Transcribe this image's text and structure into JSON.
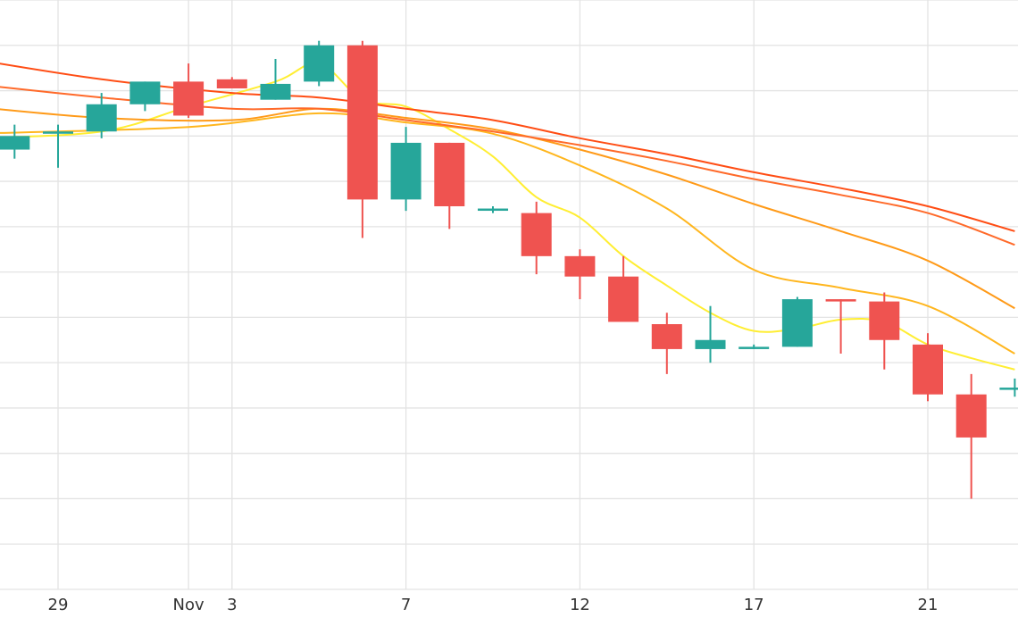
{
  "chart_data": {
    "type": "candlestick",
    "title": "",
    "xlabel": "",
    "ylabel": "",
    "grid": true,
    "legend": false,
    "x_ticks": [
      {
        "label": "29",
        "day": 29
      },
      {
        "label": "Nov",
        "day": 32
      },
      {
        "label": "3",
        "day": 33
      },
      {
        "label": "7",
        "day": 37
      },
      {
        "label": "12",
        "day": 41
      },
      {
        "label": "17",
        "day": 45
      },
      {
        "label": "21",
        "day": 49
      }
    ],
    "y_range": [
      0,
      13
    ],
    "candles": [
      {
        "day": 28,
        "open": 9.7,
        "high": 10.25,
        "low": 9.5,
        "close": 10.0
      },
      {
        "day": 29,
        "open": 10.05,
        "high": 10.25,
        "low": 9.3,
        "close": 10.1
      },
      {
        "day": 30,
        "open": 10.1,
        "high": 10.95,
        "low": 9.95,
        "close": 10.7
      },
      {
        "day": 31,
        "open": 10.7,
        "high": 11.2,
        "low": 10.55,
        "close": 11.2
      },
      {
        "day": 32,
        "open": 11.2,
        "high": 11.6,
        "low": 10.4,
        "close": 10.45
      },
      {
        "day": 33,
        "open": 11.25,
        "high": 11.3,
        "low": 11.05,
        "close": 11.05
      },
      {
        "day": 34,
        "open": 10.8,
        "high": 11.7,
        "low": 10.8,
        "close": 11.15
      },
      {
        "day": 35,
        "open": 11.2,
        "high": 12.1,
        "low": 11.1,
        "close": 12.0
      },
      {
        "day": 36,
        "open": 12.0,
        "high": 12.1,
        "low": 7.75,
        "close": 8.6
      },
      {
        "day": 37,
        "open": 8.6,
        "high": 10.2,
        "low": 8.35,
        "close": 9.85
      },
      {
        "day": 38,
        "open": 9.85,
        "high": 9.85,
        "low": 7.95,
        "close": 8.45
      },
      {
        "day": 39,
        "open": 8.4,
        "high": 8.45,
        "low": 8.3,
        "close": 8.4
      },
      {
        "day": 40,
        "open": 8.3,
        "high": 8.55,
        "low": 6.95,
        "close": 7.35
      },
      {
        "day": 41,
        "open": 7.35,
        "high": 7.5,
        "low": 6.4,
        "close": 6.9
      },
      {
        "day": 42,
        "open": 6.9,
        "high": 7.35,
        "low": 5.95,
        "close": 5.9
      },
      {
        "day": 43,
        "open": 5.85,
        "high": 6.1,
        "low": 4.75,
        "close": 5.3
      },
      {
        "day": 44,
        "open": 5.3,
        "high": 6.25,
        "low": 5.0,
        "close": 5.5
      },
      {
        "day": 45,
        "open": 5.3,
        "high": 5.4,
        "low": 5.3,
        "close": 5.35
      },
      {
        "day": 46,
        "open": 5.35,
        "high": 6.45,
        "low": 5.35,
        "close": 6.4
      },
      {
        "day": 47,
        "open": 6.4,
        "high": 6.4,
        "low": 5.2,
        "close": 6.35
      },
      {
        "day": 48,
        "open": 6.35,
        "high": 6.55,
        "low": 4.85,
        "close": 5.5
      },
      {
        "day": 49,
        "open": 5.4,
        "high": 5.65,
        "low": 4.15,
        "close": 4.3
      },
      {
        "day": 50,
        "open": 4.3,
        "high": 4.75,
        "low": 2.0,
        "close": 3.35
      },
      {
        "day": 51,
        "open": 4.45,
        "high": 4.65,
        "low": 4.25,
        "close": 4.45
      }
    ],
    "moving_averages": [
      {
        "color": "#ffee33",
        "points": [
          {
            "day": 27,
            "value": 9.95
          },
          {
            "day": 30,
            "value": 10.1
          },
          {
            "day": 32,
            "value": 10.65
          },
          {
            "day": 34,
            "value": 11.2
          },
          {
            "day": 35,
            "value": 11.6
          },
          {
            "day": 36,
            "value": 10.8
          },
          {
            "day": 37,
            "value": 10.65
          },
          {
            "day": 38,
            "value": 10.15
          },
          {
            "day": 39,
            "value": 9.55
          },
          {
            "day": 40,
            "value": 8.65
          },
          {
            "day": 41,
            "value": 8.2
          },
          {
            "day": 42,
            "value": 7.35
          },
          {
            "day": 43,
            "value": 6.7
          },
          {
            "day": 44,
            "value": 6.1
          },
          {
            "day": 45,
            "value": 5.7
          },
          {
            "day": 46,
            "value": 5.75
          },
          {
            "day": 47,
            "value": 5.95
          },
          {
            "day": 48,
            "value": 5.9
          },
          {
            "day": 49,
            "value": 5.4
          },
          {
            "day": 50,
            "value": 5.1
          },
          {
            "day": 51,
            "value": 4.85
          }
        ]
      },
      {
        "color": "#ffb61e",
        "points": [
          {
            "day": 27,
            "value": 10.05
          },
          {
            "day": 32,
            "value": 10.2
          },
          {
            "day": 35,
            "value": 10.5
          },
          {
            "day": 37,
            "value": 10.3
          },
          {
            "day": 39,
            "value": 10.05
          },
          {
            "day": 41,
            "value": 9.35
          },
          {
            "day": 43,
            "value": 8.4
          },
          {
            "day": 45,
            "value": 7.05
          },
          {
            "day": 47,
            "value": 6.65
          },
          {
            "day": 49,
            "value": 6.25
          },
          {
            "day": 51,
            "value": 5.2
          }
        ]
      },
      {
        "color": "#ff9a18",
        "points": [
          {
            "day": 27,
            "value": 10.65
          },
          {
            "day": 30,
            "value": 10.4
          },
          {
            "day": 33,
            "value": 10.35
          },
          {
            "day": 35,
            "value": 10.6
          },
          {
            "day": 37,
            "value": 10.4
          },
          {
            "day": 39,
            "value": 10.15
          },
          {
            "day": 41,
            "value": 9.7
          },
          {
            "day": 43,
            "value": 9.15
          },
          {
            "day": 45,
            "value": 8.5
          },
          {
            "day": 47,
            "value": 7.9
          },
          {
            "day": 49,
            "value": 7.25
          },
          {
            "day": 51,
            "value": 6.2
          }
        ]
      },
      {
        "color": "#ff6a2a",
        "points": [
          {
            "day": 27,
            "value": 11.15
          },
          {
            "day": 30,
            "value": 10.85
          },
          {
            "day": 33,
            "value": 10.6
          },
          {
            "day": 35,
            "value": 10.6
          },
          {
            "day": 37,
            "value": 10.35
          },
          {
            "day": 39,
            "value": 10.1
          },
          {
            "day": 41,
            "value": 9.8
          },
          {
            "day": 43,
            "value": 9.45
          },
          {
            "day": 45,
            "value": 9.05
          },
          {
            "day": 47,
            "value": 8.7
          },
          {
            "day": 49,
            "value": 8.3
          },
          {
            "day": 51,
            "value": 7.6
          }
        ]
      },
      {
        "color": "#ff4d14",
        "points": [
          {
            "day": 27,
            "value": 11.7
          },
          {
            "day": 30,
            "value": 11.25
          },
          {
            "day": 33,
            "value": 10.95
          },
          {
            "day": 35,
            "value": 10.85
          },
          {
            "day": 37,
            "value": 10.6
          },
          {
            "day": 39,
            "value": 10.35
          },
          {
            "day": 41,
            "value": 9.95
          },
          {
            "day": 43,
            "value": 9.6
          },
          {
            "day": 45,
            "value": 9.2
          },
          {
            "day": 47,
            "value": 8.85
          },
          {
            "day": 49,
            "value": 8.45
          },
          {
            "day": 51,
            "value": 7.9
          }
        ]
      }
    ],
    "colors": {
      "up": "#26a69a",
      "down": "#ef5350",
      "grid": "#e3e3e3",
      "tick_text": "#333333"
    }
  }
}
